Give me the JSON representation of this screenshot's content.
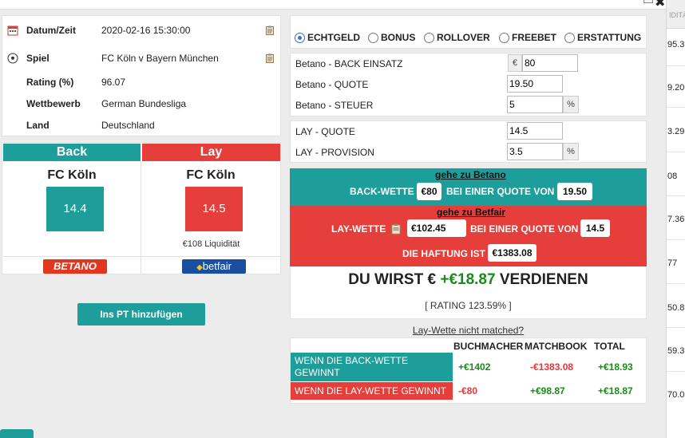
{
  "window": {
    "close_label": "✖"
  },
  "info": {
    "rows": [
      {
        "label": "Datum/Zeit",
        "value": "2020-02-16 15:30:00"
      },
      {
        "label": "Spiel",
        "value": "FC Köln v Bayern München"
      },
      {
        "label": "Rating (%)",
        "value": "96.07"
      },
      {
        "label": "Wettbewerb",
        "value": "German Bundesliga"
      },
      {
        "label": "Land",
        "value": "Deutschland"
      }
    ]
  },
  "back": {
    "header": "Back",
    "team": "FC Köln",
    "odds": "14.4",
    "bookmaker": "BETANO"
  },
  "lay": {
    "header": "Lay",
    "team": "FC Köln",
    "odds": "14.5",
    "liquidity": "€108 Liquidität",
    "exchange": "betfair"
  },
  "add_button": "Ins PT hinzufügen",
  "bet_types": [
    {
      "label": "ECHTGELD",
      "selected": true
    },
    {
      "label": "BONUS",
      "selected": false
    },
    {
      "label": "ROLLOVER",
      "selected": false
    },
    {
      "label": "FREEBET",
      "selected": false
    },
    {
      "label": "ERSTATTUNG",
      "selected": false
    }
  ],
  "form": {
    "back_stake_label": "Betano - BACK EINSATZ",
    "currency": "€",
    "back_stake": "80",
    "back_odds_label": "Betano - QUOTE",
    "back_odds": "19.50",
    "back_tax_label": "Betano - STEUER",
    "back_tax": "5",
    "percent": "%",
    "lay_odds_label": "LAY - QUOTE",
    "lay_odds": "14.5",
    "lay_commission_label": "LAY - PROVISION",
    "lay_commission": "3.5"
  },
  "back_band": {
    "link": "gehe zu Betano",
    "prefix": "BACK-WETTE",
    "stake": "€80",
    "middle": "BEI EINER QUOTE VON",
    "odds": "19.50"
  },
  "lay_band": {
    "link": "gehe zu Betfair",
    "prefix": "LAY-WETTE",
    "stake": "€102.45",
    "middle": "BEI EINER QUOTE VON",
    "odds": "14.5",
    "liability_label": "DIE HAFTUNG IST",
    "liability": "€1383.08"
  },
  "profit": {
    "prefix": "DU WIRST €",
    "amount": "+€18.87",
    "suffix": "VERDIENEN"
  },
  "rating_text": "[ RATING 123.59% ]",
  "not_matched_link": "Lay-Wette nicht matched?",
  "results": {
    "headers": [
      "BUCHMACHER",
      "MATCHBOOK",
      "TOTAL"
    ],
    "rows": [
      {
        "label": "WENN DIE BACK-WETTE GEWINNT",
        "bookmaker": "+€1402",
        "matchbook": "-€1383.08",
        "total": "+€18.93"
      },
      {
        "label": "WENN DIE LAY-WETTE GEWINNT",
        "bookmaker": "-€80",
        "matchbook": "+€98.87",
        "total": "+€18.87"
      }
    ]
  },
  "right_column": {
    "header": "IDITÄ",
    "values": [
      "95.3",
      "9.20",
      "3.29",
      "08",
      "7.36",
      "77",
      "50.8",
      "59.3",
      "70.0"
    ]
  },
  "colors": {
    "teal": "#1e9e9a",
    "red": "#e53e3b",
    "green": "#1a8a1a"
  }
}
